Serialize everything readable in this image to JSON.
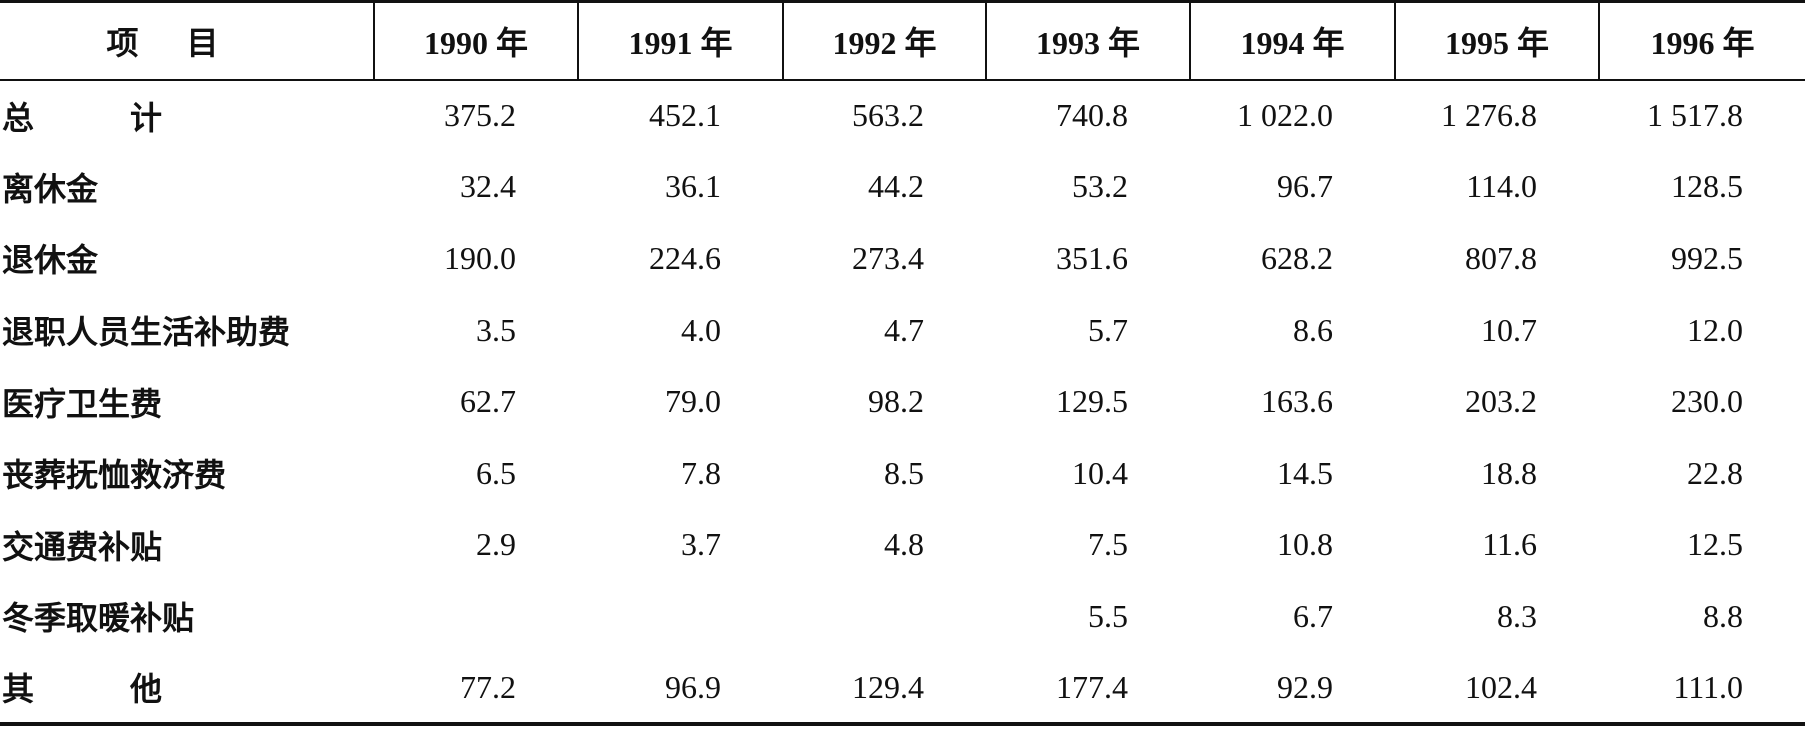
{
  "table": {
    "header": [
      "项目",
      "1990 年",
      "1991 年",
      "1992 年",
      "1993 年",
      "1994 年",
      "1995 年",
      "1996 年"
    ],
    "rows": [
      [
        "总计",
        "375.2",
        "452.1",
        "563.2",
        "740.8",
        "1 022.0",
        "1 276.8",
        "1 517.8"
      ],
      [
        "离休金",
        "32.4",
        "36.1",
        "44.2",
        "53.2",
        "96.7",
        "114.0",
        "128.5"
      ],
      [
        "退休金",
        "190.0",
        "224.6",
        "273.4",
        "351.6",
        "628.2",
        "807.8",
        "992.5"
      ],
      [
        "退职人员生活补助费",
        "3.5",
        "4.0",
        "4.7",
        "5.7",
        "8.6",
        "10.7",
        "12.0"
      ],
      [
        "医疗卫生费",
        "62.7",
        "79.0",
        "98.2",
        "129.5",
        "163.6",
        "203.2",
        "230.0"
      ],
      [
        "丧葬抚恤救济费",
        "6.5",
        "7.8",
        "8.5",
        "10.4",
        "14.5",
        "18.8",
        "22.8"
      ],
      [
        "交通费补贴",
        "2.9",
        "3.7",
        "4.8",
        "7.5",
        "10.8",
        "11.6",
        "12.5"
      ],
      [
        "冬季取暖补贴",
        null,
        null,
        null,
        "5.5",
        "6.7",
        "8.3",
        "8.8"
      ],
      [
        "其他",
        "77.2",
        "96.9",
        "129.4",
        "177.4",
        "92.9",
        "102.4",
        "111.0"
      ]
    ]
  }
}
